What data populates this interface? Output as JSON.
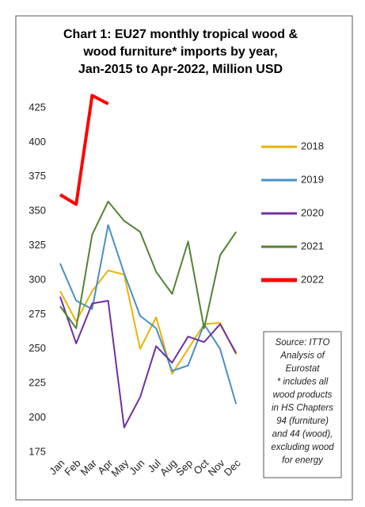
{
  "chart_data": {
    "type": "line",
    "title": [
      "Chart 1: EU27 monthly tropical wood &",
      "wood furniture* imports by year,",
      "Jan-2015 to Apr-2022, Million USD"
    ],
    "categories": [
      "Jan",
      "Feb",
      "Mar",
      "Apr",
      "May",
      "Jun",
      "Jul",
      "Aug",
      "Sep",
      "Oct",
      "Nov",
      "Dec"
    ],
    "series": [
      {
        "name": "2018",
        "color": "#e8b400",
        "values": [
          292,
          270,
          292,
          307,
          304,
          250,
          273,
          232,
          250,
          268,
          269,
          246
        ]
      },
      {
        "name": "2019",
        "color": "#4a8fc4",
        "values": [
          312,
          285,
          279,
          340,
          305,
          274,
          265,
          234,
          238,
          268,
          250,
          210
        ]
      },
      {
        "name": "2020",
        "color": "#7030a0",
        "values": [
          288,
          254,
          283,
          285,
          193,
          215,
          252,
          240,
          259,
          255,
          268,
          247
        ]
      },
      {
        "name": "2021",
        "color": "#548235",
        "values": [
          281,
          265,
          333,
          357,
          343,
          335,
          306,
          290,
          328,
          265,
          318,
          335
        ]
      },
      {
        "name": "2022",
        "color": "#ff0000",
        "values": [
          362,
          355,
          434,
          428,
          null,
          null,
          null,
          null,
          null,
          null,
          null,
          null
        ]
      }
    ],
    "ylim": [
      175,
      440
    ],
    "yticks": [
      175,
      200,
      225,
      250,
      275,
      300,
      325,
      350,
      375,
      400,
      425
    ],
    "note": [
      "Source: ITTO",
      "Analysis of",
      "Eurostat",
      "* includes all",
      "wood products",
      "in HS Chapters",
      "94 (furniture)",
      "and 44 (wood),",
      "excluding wood",
      "for energy"
    ]
  }
}
